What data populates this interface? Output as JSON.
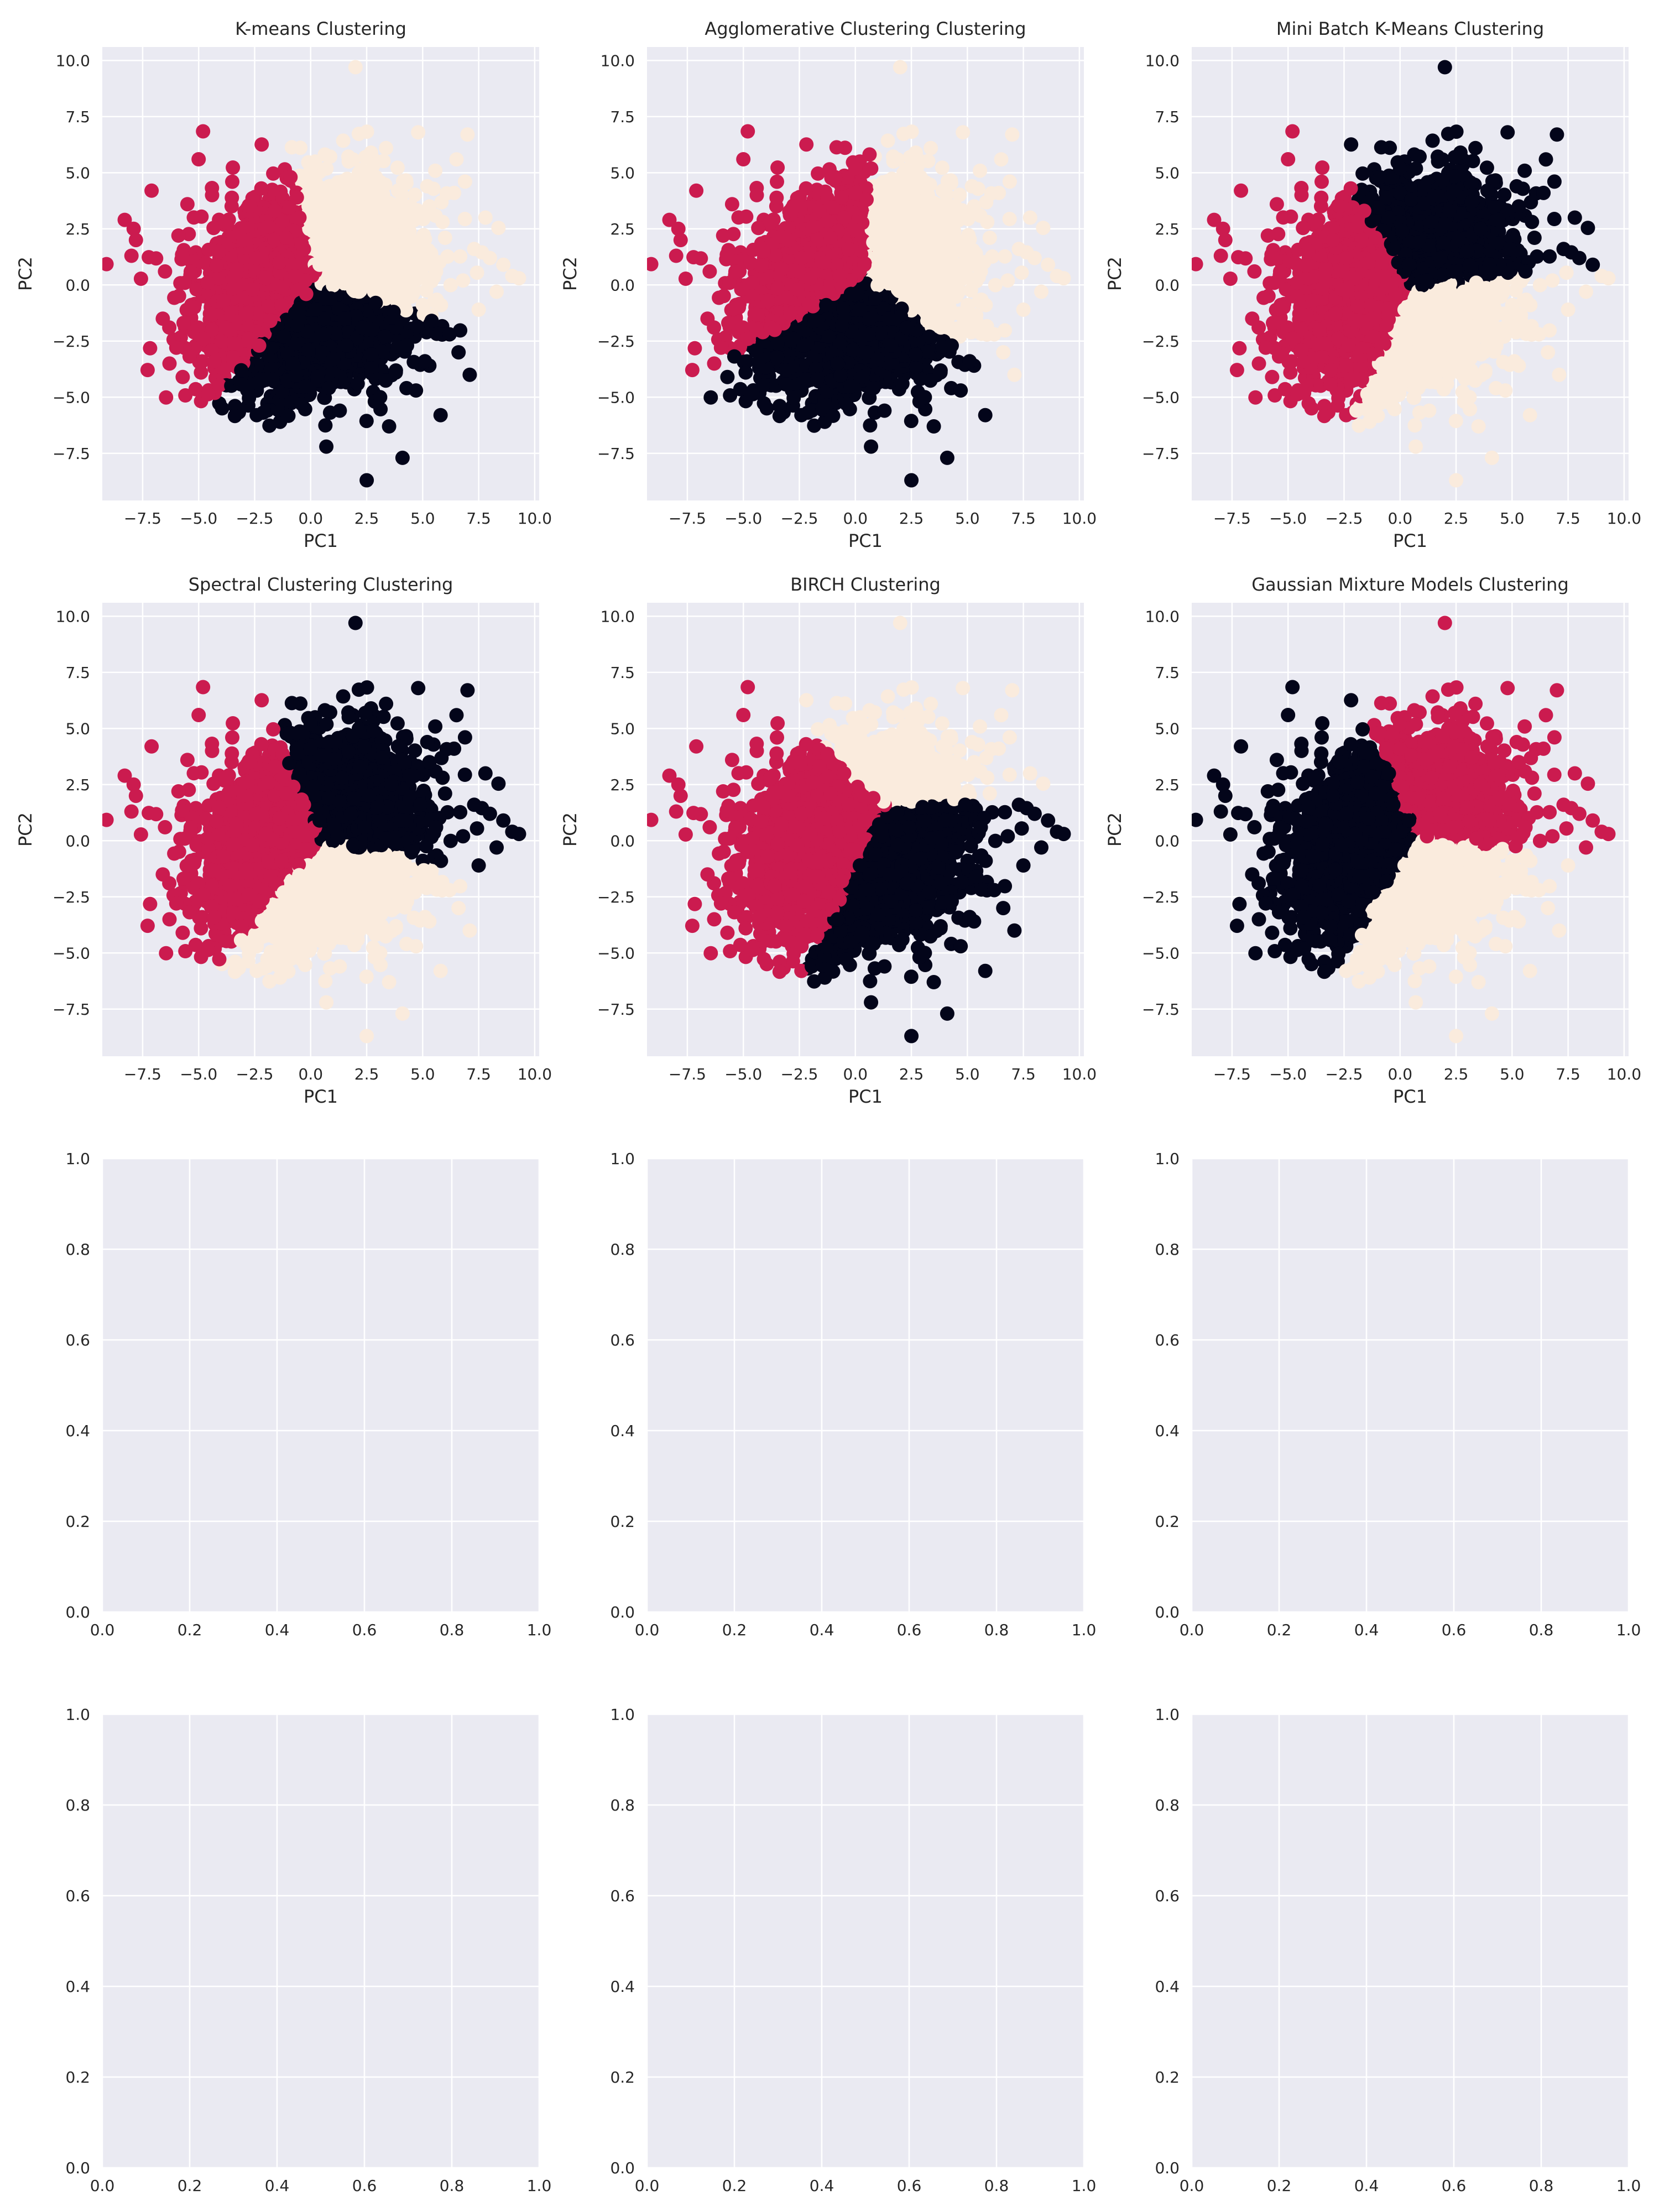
{
  "figure": {
    "background": "#ffffff",
    "axes_facecolor": "#eaeaf2",
    "grid_color": "#ffffff"
  },
  "palette": {
    "cluster_dark": "#03051a",
    "cluster_red": "#cb1b4f",
    "cluster_cream": "#faebdd"
  },
  "chart_data": [
    {
      "type": "scatter",
      "title": "K-means Clustering",
      "xlabel": "PC1",
      "ylabel": "PC2",
      "xlim": [
        -9.3,
        10.2
      ],
      "ylim": [
        -9.6,
        10.6
      ],
      "xticks": [
        -7.5,
        -5.0,
        -2.5,
        0.0,
        2.5,
        5.0,
        7.5,
        10.0
      ],
      "yticks": [
        -7.5,
        -5.0,
        -2.5,
        0.0,
        2.5,
        5.0,
        7.5,
        10.0
      ],
      "grid": true,
      "dataset": "pca",
      "partition": {
        "kind": "centroids",
        "centers": [
          {
            "x": -2.8,
            "y": 0.9,
            "color": "#cb1b4f"
          },
          {
            "x": 2.9,
            "y": 2.0,
            "color": "#faebdd"
          },
          {
            "x": 1.4,
            "y": -3.0,
            "color": "#03051a"
          }
        ]
      }
    },
    {
      "type": "scatter",
      "title": "Agglomerative Clustering Clustering",
      "xlabel": "PC1",
      "ylabel": "PC2",
      "xlim": [
        -9.3,
        10.2
      ],
      "ylim": [
        -9.6,
        10.6
      ],
      "xticks": [
        -7.5,
        -5.0,
        -2.5,
        0.0,
        2.5,
        5.0,
        7.5,
        10.0
      ],
      "yticks": [
        -7.5,
        -5.0,
        -2.5,
        0.0,
        2.5,
        5.0,
        7.5,
        10.0
      ],
      "grid": true,
      "dataset": "pca",
      "partition": {
        "kind": "centroids",
        "centers": [
          {
            "x": -2.4,
            "y": 1.7,
            "color": "#cb1b4f"
          },
          {
            "x": 3.4,
            "y": 1.3,
            "color": "#faebdd"
          },
          {
            "x": 0.3,
            "y": -2.7,
            "color": "#03051a"
          }
        ]
      }
    },
    {
      "type": "scatter",
      "title": "Mini Batch K-Means Clustering",
      "xlabel": "PC1",
      "ylabel": "PC2",
      "xlim": [
        -9.3,
        10.2
      ],
      "ylim": [
        -9.6,
        10.6
      ],
      "xticks": [
        -7.5,
        -5.0,
        -2.5,
        0.0,
        2.5,
        5.0,
        7.5,
        10.0
      ],
      "yticks": [
        -7.5,
        -5.0,
        -2.5,
        0.0,
        2.5,
        5.0,
        7.5,
        10.0
      ],
      "grid": true,
      "dataset": "pca",
      "partition": {
        "kind": "centroids",
        "centers": [
          {
            "x": -2.9,
            "y": -0.2,
            "color": "#cb1b4f"
          },
          {
            "x": 2.1,
            "y": 2.8,
            "color": "#03051a"
          },
          {
            "x": 2.6,
            "y": -2.6,
            "color": "#faebdd"
          }
        ]
      }
    },
    {
      "type": "scatter",
      "title": "Spectral Clustering Clustering",
      "xlabel": "PC1",
      "ylabel": "PC2",
      "xlim": [
        -9.3,
        10.2
      ],
      "ylim": [
        -9.6,
        10.6
      ],
      "xticks": [
        -7.5,
        -5.0,
        -2.5,
        0.0,
        2.5,
        5.0,
        7.5,
        10.0
      ],
      "yticks": [
        -7.5,
        -5.0,
        -2.5,
        0.0,
        2.5,
        5.0,
        7.5,
        10.0
      ],
      "grid": true,
      "dataset": "pca",
      "partition": {
        "kind": "centroids",
        "centers": [
          {
            "x": -2.9,
            "y": 0.3,
            "color": "#cb1b4f"
          },
          {
            "x": 2.6,
            "y": 2.6,
            "color": "#03051a"
          },
          {
            "x": 1.4,
            "y": -3.2,
            "color": "#faebdd"
          }
        ]
      }
    },
    {
      "type": "scatter",
      "title": "BIRCH Clustering",
      "xlabel": "PC1",
      "ylabel": "PC2",
      "xlim": [
        -9.3,
        10.2
      ],
      "ylim": [
        -9.6,
        10.6
      ],
      "xticks": [
        -7.5,
        -5.0,
        -2.5,
        0.0,
        2.5,
        5.0,
        7.5,
        10.0
      ],
      "yticks": [
        -7.5,
        -5.0,
        -2.5,
        0.0,
        2.5,
        5.0,
        7.5,
        10.0
      ],
      "grid": true,
      "dataset": "pca",
      "partition": {
        "kind": "centroids",
        "centers": [
          {
            "x": -1.8,
            "y": 0.6,
            "color": "#cb1b4f"
          },
          {
            "x": 2.0,
            "y": 4.8,
            "color": "#faebdd"
          },
          {
            "x": 2.6,
            "y": -1.6,
            "color": "#03051a"
          }
        ]
      }
    },
    {
      "type": "scatter",
      "title": "Gaussian Mixture Models Clustering",
      "xlabel": "PC1",
      "ylabel": "PC2",
      "xlim": [
        -9.3,
        10.2
      ],
      "ylim": [
        -9.6,
        10.6
      ],
      "xticks": [
        -7.5,
        -5.0,
        -2.5,
        0.0,
        2.5,
        5.0,
        7.5,
        10.0
      ],
      "yticks": [
        -7.5,
        -5.0,
        -2.5,
        0.0,
        2.5,
        5.0,
        7.5,
        10.0
      ],
      "grid": true,
      "dataset": "pca",
      "partition": {
        "kind": "centroids",
        "centers": [
          {
            "x": -2.7,
            "y": 0.3,
            "color": "#03051a"
          },
          {
            "x": 3.1,
            "y": 2.7,
            "color": "#cb1b4f"
          },
          {
            "x": 2.4,
            "y": -2.8,
            "color": "#faebdd"
          }
        ]
      }
    },
    {
      "type": "scatter",
      "title": "",
      "xlabel": "",
      "ylabel": "",
      "xlim": [
        0,
        1
      ],
      "ylim": [
        0,
        1
      ],
      "xticks": [
        0.0,
        0.2,
        0.4,
        0.6,
        0.8,
        1.0
      ],
      "yticks": [
        0.0,
        0.2,
        0.4,
        0.6,
        0.8,
        1.0
      ],
      "grid": true,
      "empty": true
    },
    {
      "type": "scatter",
      "title": "",
      "xlabel": "",
      "ylabel": "",
      "xlim": [
        0,
        1
      ],
      "ylim": [
        0,
        1
      ],
      "xticks": [
        0.0,
        0.2,
        0.4,
        0.6,
        0.8,
        1.0
      ],
      "yticks": [
        0.0,
        0.2,
        0.4,
        0.6,
        0.8,
        1.0
      ],
      "grid": true,
      "empty": true
    },
    {
      "type": "scatter",
      "title": "",
      "xlabel": "",
      "ylabel": "",
      "xlim": [
        0,
        1
      ],
      "ylim": [
        0,
        1
      ],
      "xticks": [
        0.0,
        0.2,
        0.4,
        0.6,
        0.8,
        1.0
      ],
      "yticks": [
        0.0,
        0.2,
        0.4,
        0.6,
        0.8,
        1.0
      ],
      "grid": true,
      "empty": true
    },
    {
      "type": "scatter",
      "title": "",
      "xlabel": "",
      "ylabel": "",
      "xlim": [
        0,
        1
      ],
      "ylim": [
        0,
        1
      ],
      "xticks": [
        0.0,
        0.2,
        0.4,
        0.6,
        0.8,
        1.0
      ],
      "yticks": [
        0.0,
        0.2,
        0.4,
        0.6,
        0.8,
        1.0
      ],
      "grid": true,
      "empty": true
    },
    {
      "type": "scatter",
      "title": "",
      "xlabel": "",
      "ylabel": "",
      "xlim": [
        0,
        1
      ],
      "ylim": [
        0,
        1
      ],
      "xticks": [
        0.0,
        0.2,
        0.4,
        0.6,
        0.8,
        1.0
      ],
      "yticks": [
        0.0,
        0.2,
        0.4,
        0.6,
        0.8,
        1.0
      ],
      "grid": true,
      "empty": true
    },
    {
      "type": "scatter",
      "title": "",
      "xlabel": "",
      "ylabel": "",
      "xlim": [
        0,
        1
      ],
      "ylim": [
        0,
        1
      ],
      "xticks": [
        0.0,
        0.2,
        0.4,
        0.6,
        0.8,
        1.0
      ],
      "yticks": [
        0.0,
        0.2,
        0.4,
        0.6,
        0.8,
        1.0
      ],
      "grid": true,
      "empty": true
    }
  ],
  "pca_points": [
    [
      -8.3,
      2.9
    ],
    [
      -7.9,
      2.5
    ],
    [
      -7.8,
      2.0
    ],
    [
      -8.0,
      1.3
    ],
    [
      -7.1,
      4.2
    ],
    [
      -6.5,
      0.6
    ],
    [
      -6.6,
      -1.5
    ],
    [
      -6.3,
      -3.5
    ],
    [
      -5.9,
      2.2
    ],
    [
      -5.5,
      3.6
    ],
    [
      -5.2,
      -1.0
    ],
    [
      -5.0,
      5.6
    ],
    [
      -4.8,
      -2.4
    ],
    [
      -4.6,
      0.1
    ],
    [
      -4.4,
      4.0
    ],
    [
      -4.3,
      -3.4
    ],
    [
      -4.1,
      1.5
    ],
    [
      -3.9,
      -0.7
    ],
    [
      -3.8,
      2.8
    ],
    [
      -3.6,
      -2.0
    ],
    [
      -3.5,
      4.6
    ],
    [
      -3.3,
      0.7
    ],
    [
      -3.1,
      -3.8
    ],
    [
      -3.0,
      2.0
    ],
    [
      -2.9,
      -1.3
    ],
    [
      -2.7,
      3.5
    ],
    [
      -2.6,
      -0.2
    ],
    [
      -2.4,
      1.2
    ],
    [
      -2.3,
      -2.7
    ],
    [
      -2.2,
      4.3
    ],
    [
      -2.0,
      0.3
    ],
    [
      -1.9,
      2.6
    ],
    [
      -1.8,
      -1.6
    ],
    [
      -1.7,
      -4.2
    ],
    [
      -1.6,
      3.3
    ],
    [
      -1.4,
      1.0
    ],
    [
      -1.3,
      -0.9
    ],
    [
      -1.2,
      -2.3
    ],
    [
      -1.1,
      2.1
    ],
    [
      -0.9,
      4.8
    ],
    [
      -0.8,
      -3.5
    ],
    [
      -0.7,
      0.4
    ],
    [
      -0.6,
      -1.8
    ],
    [
      -0.5,
      3.0
    ],
    [
      -0.4,
      -5.3
    ],
    [
      -0.3,
      1.6
    ],
    [
      -0.2,
      -0.4
    ],
    [
      -0.1,
      -2.9
    ],
    [
      0.0,
      5.2
    ],
    [
      0.1,
      2.4
    ],
    [
      0.2,
      -1.1
    ],
    [
      0.3,
      -4.1
    ],
    [
      0.4,
      0.9
    ],
    [
      0.5,
      3.8
    ],
    [
      0.6,
      -2.2
    ],
    [
      0.7,
      -7.2
    ],
    [
      0.8,
      1.9
    ],
    [
      0.9,
      -0.6
    ],
    [
      1.0,
      -3.3
    ],
    [
      1.1,
      4.4
    ],
    [
      1.2,
      0.2
    ],
    [
      1.3,
      -5.6
    ],
    [
      1.4,
      2.8
    ],
    [
      1.5,
      -1.5
    ],
    [
      1.6,
      -2.7
    ],
    [
      1.7,
      5.5
    ],
    [
      1.8,
      1.2
    ],
    [
      1.9,
      -0.2
    ],
    [
      2.0,
      9.7
    ],
    [
      2.1,
      -4.4
    ],
    [
      2.2,
      3.3
    ],
    [
      2.3,
      -1.9
    ],
    [
      2.4,
      0.6
    ],
    [
      2.5,
      -8.7
    ],
    [
      2.6,
      2.0
    ],
    [
      2.7,
      -3.1
    ],
    [
      2.8,
      4.9
    ],
    [
      2.9,
      -0.8
    ],
    [
      3.0,
      1.5
    ],
    [
      3.1,
      -5.0
    ],
    [
      3.2,
      3.7
    ],
    [
      3.3,
      -2.3
    ],
    [
      3.4,
      0.1
    ],
    [
      3.5,
      -6.3
    ],
    [
      3.6,
      2.5
    ],
    [
      3.7,
      -1.2
    ],
    [
      3.8,
      -3.9
    ],
    [
      3.9,
      4.2
    ],
    [
      4.0,
      0.9
    ],
    [
      4.1,
      -7.7
    ],
    [
      4.3,
      -2.7
    ],
    [
      4.4,
      2.9
    ],
    [
      4.5,
      -0.5
    ],
    [
      4.7,
      -4.7
    ],
    [
      4.8,
      6.8
    ],
    [
      4.9,
      1.6
    ],
    [
      5.1,
      -3.4
    ],
    [
      5.3,
      3.5
    ],
    [
      5.4,
      -1.6
    ],
    [
      5.6,
      0.6
    ],
    [
      5.8,
      -5.8
    ],
    [
      6.0,
      2.1
    ],
    [
      6.2,
      -2.2
    ],
    [
      6.4,
      4.1
    ],
    [
      6.6,
      -3.0
    ],
    [
      6.8,
      0.2
    ],
    [
      7.0,
      6.7
    ],
    [
      7.1,
      -4.0
    ],
    [
      7.3,
      1.6
    ],
    [
      7.5,
      -1.1
    ],
    [
      7.8,
      3.0
    ],
    [
      8.0,
      1.2
    ],
    [
      8.3,
      -0.3
    ],
    [
      8.6,
      0.9
    ],
    [
      9.0,
      0.4
    ],
    [
      9.3,
      0.3
    ]
  ],
  "cluster_cloud": {
    "count": 4200,
    "seed": 17,
    "center": [
      0.1,
      -0.1
    ],
    "sd": [
      2.15,
      2.05
    ],
    "rho": 0.18
  }
}
